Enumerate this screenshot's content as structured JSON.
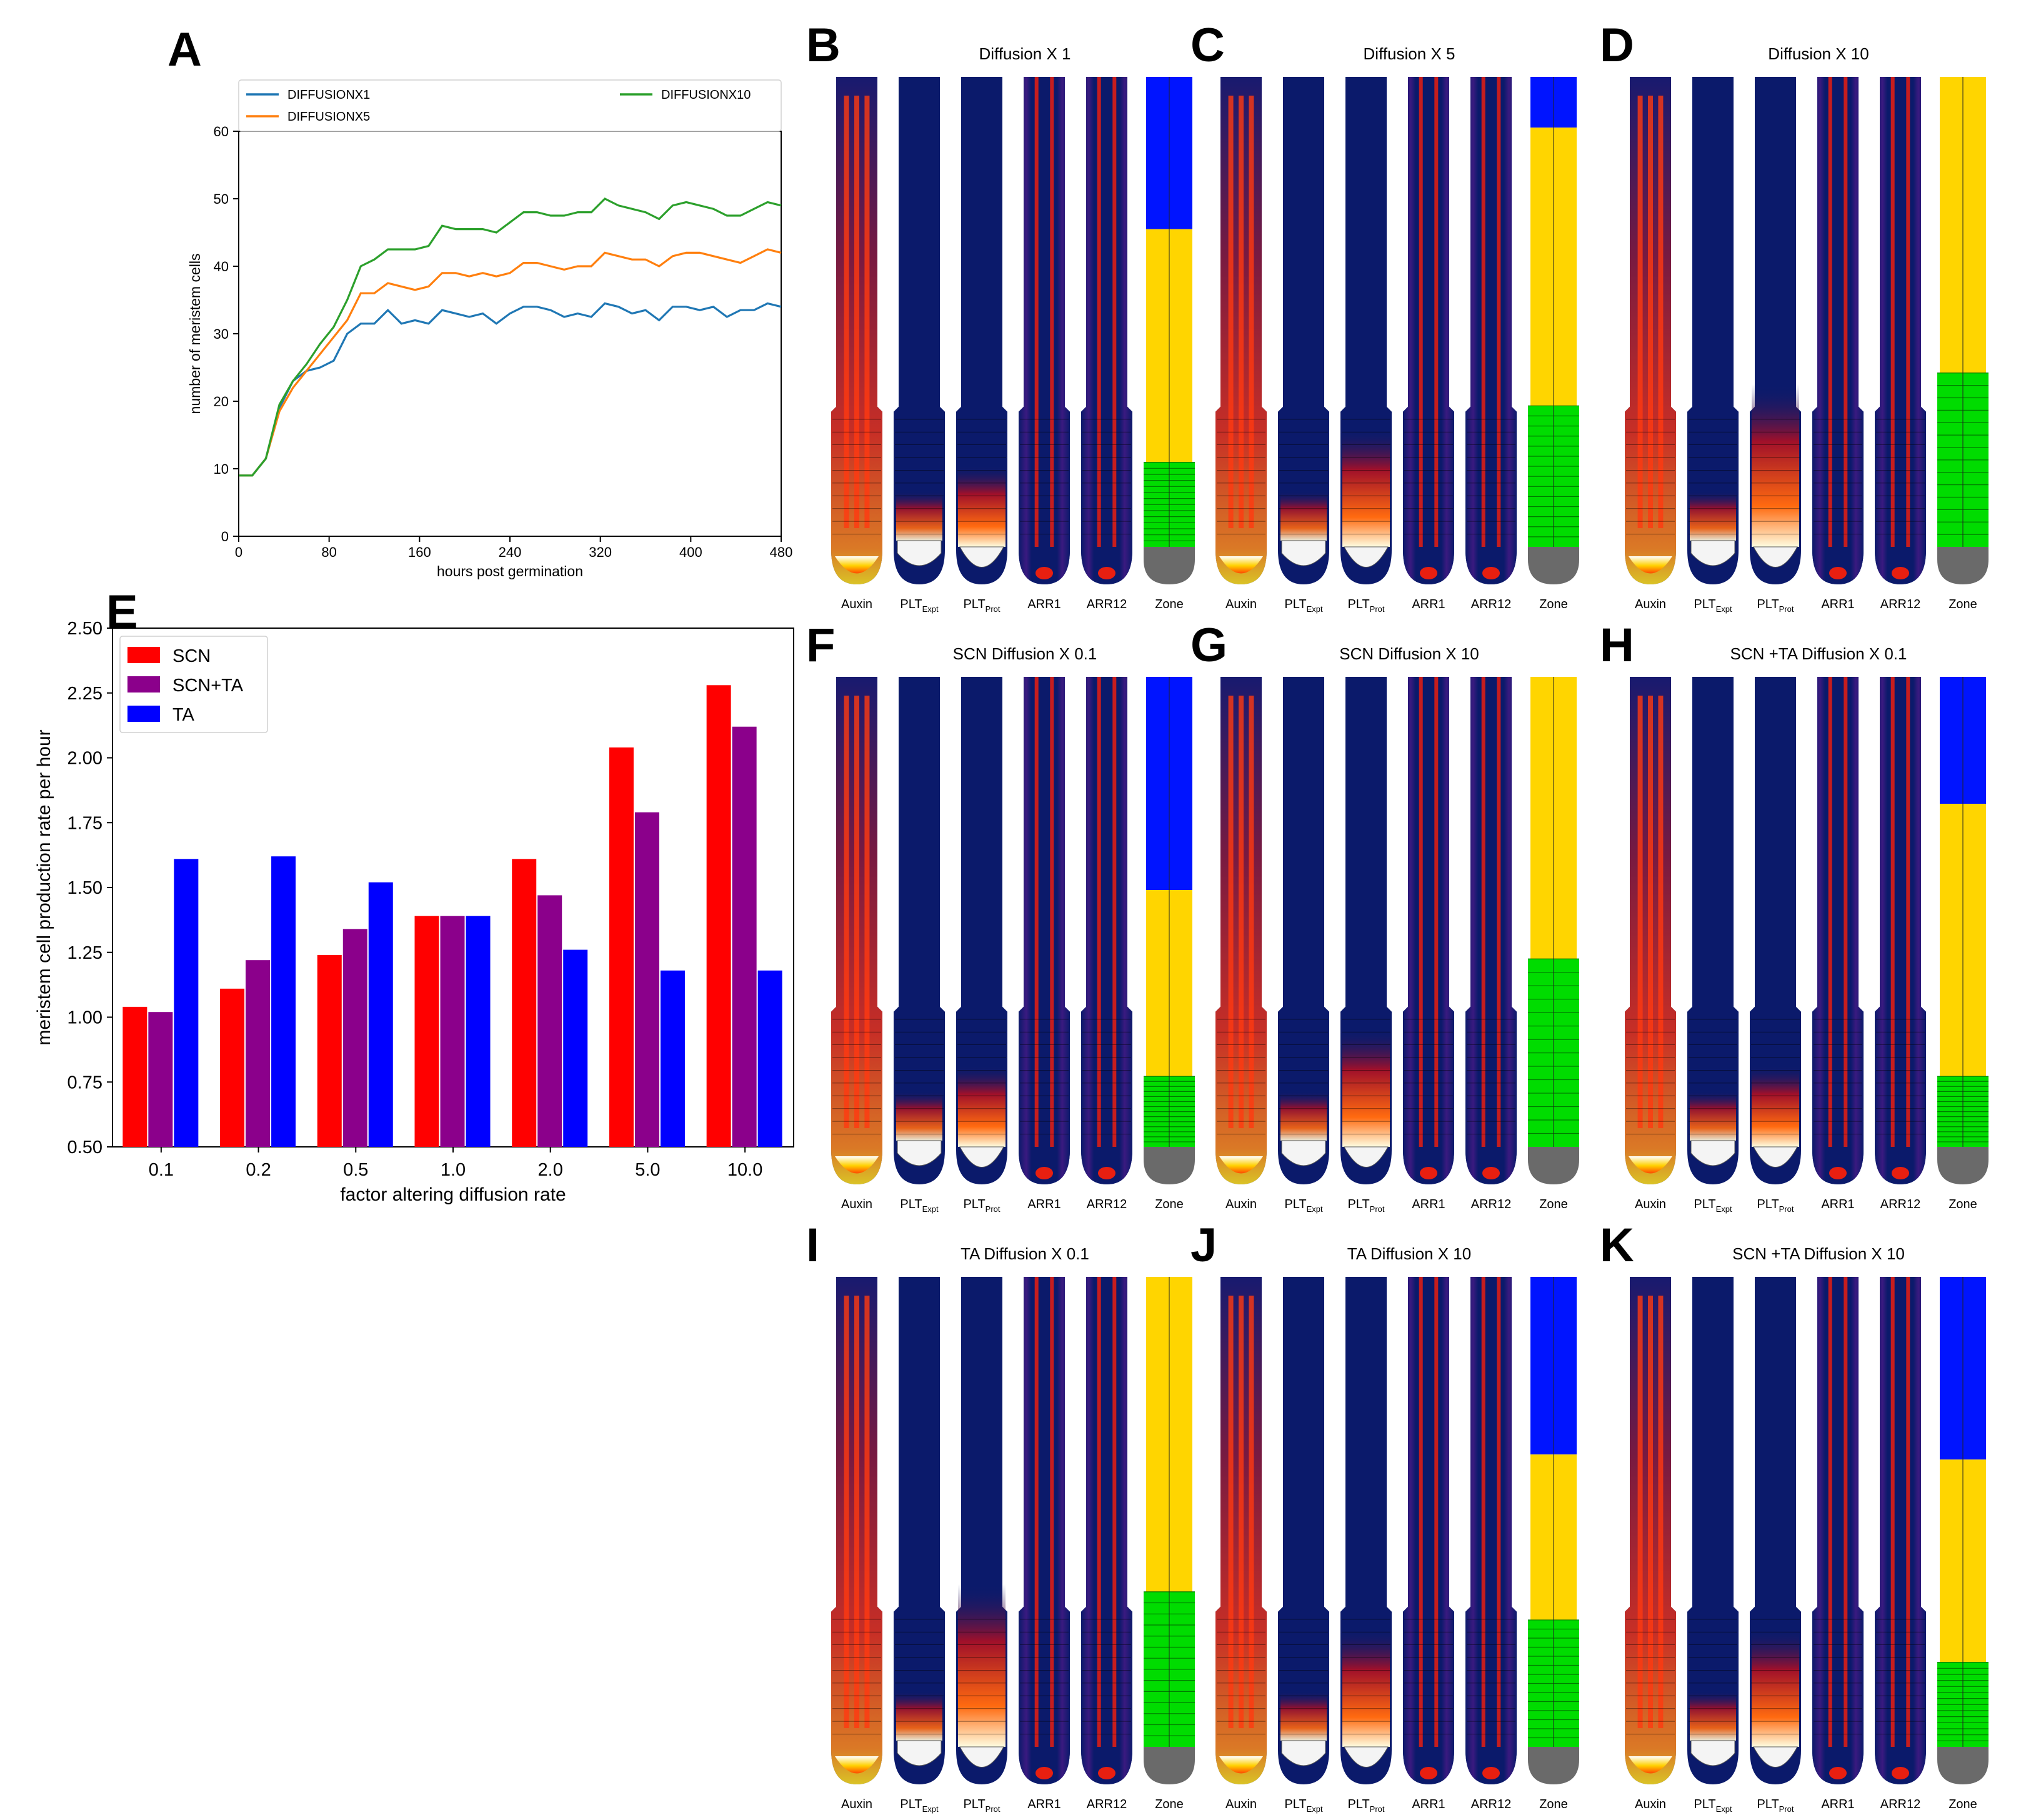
{
  "panel_letters": {
    "A": "A",
    "E": "E"
  },
  "colors": {
    "diff1": "#1f77b4",
    "diff5": "#ff7f0e",
    "diff10": "#2ca02c",
    "SCN": "#ff0000",
    "SCNTA": "#8b008b",
    "TA": "#0000ff",
    "navy": "#0b1a6b",
    "red": "#e81f10",
    "yellow": "#ffd500",
    "zoneBlue": "#0014ff",
    "zoneGreen": "#00dc00",
    "zoneGray": "#6a6a6a"
  },
  "chart_data": [
    {
      "type": "line",
      "id": "A",
      "title": "",
      "xlabel": "hours post germination",
      "ylabel": "number of meristem cells",
      "xlim": [
        0,
        480
      ],
      "ylim": [
        0,
        60
      ],
      "xticks": [
        0,
        80,
        160,
        240,
        320,
        400,
        480
      ],
      "yticks": [
        0,
        10,
        20,
        30,
        40,
        50,
        60
      ],
      "legend": [
        "DIFFUSIONX1",
        "DIFFUSIONX5",
        "DIFFUSIONX10"
      ],
      "x": [
        0,
        12,
        24,
        36,
        48,
        60,
        72,
        84,
        96,
        108,
        120,
        132,
        144,
        156,
        168,
        180,
        192,
        204,
        216,
        228,
        240,
        252,
        264,
        276,
        288,
        300,
        312,
        324,
        336,
        348,
        360,
        372,
        384,
        396,
        408,
        420,
        432,
        444,
        456,
        468,
        480
      ],
      "series": [
        {
          "name": "DIFFUSIONX1",
          "color": "diff1",
          "values": [
            9,
            9,
            11.5,
            19,
            23,
            24.5,
            25,
            26,
            30,
            31.5,
            31.5,
            33.5,
            31.5,
            32,
            31.5,
            33.5,
            33,
            32.5,
            33,
            31.5,
            33,
            34,
            34,
            33.5,
            32.5,
            33,
            32.5,
            34.5,
            34,
            33,
            33.5,
            32,
            34,
            34,
            33.5,
            34,
            32.5,
            33.5,
            33.5,
            34.5,
            34
          ]
        },
        {
          "name": "DIFFUSIONX5",
          "color": "diff5",
          "values": [
            9,
            9,
            11.5,
            18.5,
            22,
            24.5,
            27,
            29.5,
            32,
            36,
            36,
            37.5,
            37,
            36.5,
            37,
            39,
            39,
            38.5,
            39,
            38.5,
            39,
            40.5,
            40.5,
            40,
            39.5,
            40,
            40,
            42,
            41.5,
            41,
            41,
            40,
            41.5,
            42,
            42,
            41.5,
            41,
            40.5,
            41.5,
            42.5,
            42
          ]
        },
        {
          "name": "DIFFUSIONX10",
          "color": "diff10",
          "values": [
            9,
            9,
            11.5,
            19.5,
            23,
            25.5,
            28.5,
            31,
            35,
            40,
            41,
            42.5,
            42.5,
            42.5,
            43,
            46,
            45.5,
            45.5,
            45.5,
            45,
            46.5,
            48,
            48,
            47.5,
            47.5,
            48,
            48,
            50,
            49,
            48.5,
            48,
            47,
            49,
            49.5,
            49,
            48.5,
            47.5,
            47.5,
            48.5,
            49.5,
            49
          ]
        }
      ]
    },
    {
      "type": "bar",
      "id": "E",
      "title": "",
      "xlabel": "factor altering diffusion rate",
      "ylabel": "meristem cell production rate per hour",
      "ylim": [
        0.5,
        2.5
      ],
      "yticks": [
        "0.50",
        "0.75",
        "1.00",
        "1.25",
        "1.50",
        "1.75",
        "2.00",
        "2.25",
        "2.50"
      ],
      "categories": [
        "0.1",
        "0.2",
        "0.5",
        "1.0",
        "2.0",
        "5.0",
        "10.0"
      ],
      "series": [
        {
          "name": "SCN",
          "color": "SCN",
          "values": [
            1.04,
            1.11,
            1.24,
            1.39,
            1.61,
            2.04,
            2.28
          ]
        },
        {
          "name": "SCN+TA",
          "color": "SCNTA",
          "values": [
            1.02,
            1.22,
            1.34,
            1.39,
            1.47,
            1.79,
            2.12
          ]
        },
        {
          "name": "TA",
          "color": "TA",
          "values": [
            1.61,
            1.62,
            1.52,
            1.39,
            1.26,
            1.18,
            1.18
          ]
        }
      ]
    }
  ],
  "root_labels": [
    "Auxin",
    "PLT",
    "PLT",
    "ARR1",
    "ARR12",
    "Zone"
  ],
  "root_subs": [
    "",
    "Expt",
    "Prot",
    "",
    "",
    ""
  ],
  "root_panels": [
    {
      "letter": "B",
      "title": "Diffusion X 1",
      "blue": 0.3,
      "green": 0.82,
      "plt": "low"
    },
    {
      "letter": "C",
      "title": "Diffusion X 5",
      "blue": 0.1,
      "green": 0.7,
      "plt": "mid"
    },
    {
      "letter": "D",
      "title": "Diffusion X 10",
      "blue": 0.0,
      "green": 0.63,
      "plt": "high"
    },
    {
      "letter": "F",
      "title": "SCN Diffusion X 0.1",
      "blue": 0.42,
      "green": 0.85,
      "plt": "low"
    },
    {
      "letter": "G",
      "title": "SCN Diffusion  X 10",
      "blue": 0.0,
      "green": 0.6,
      "plt": "mid"
    },
    {
      "letter": "H",
      "title": "SCN +TA Diffusion X 0.1",
      "blue": 0.25,
      "green": 0.85,
      "plt": "low"
    },
    {
      "letter": "I",
      "title": "TA Diffusion X 0.1",
      "blue": 0.0,
      "green": 0.67,
      "plt": "high"
    },
    {
      "letter": "J",
      "title": "TA Diffusion X 10",
      "blue": 0.35,
      "green": 0.73,
      "plt": "mid"
    },
    {
      "letter": "K",
      "title": "SCN +TA Diffusion X 10",
      "blue": 0.36,
      "green": 0.82,
      "plt": "mid"
    }
  ]
}
